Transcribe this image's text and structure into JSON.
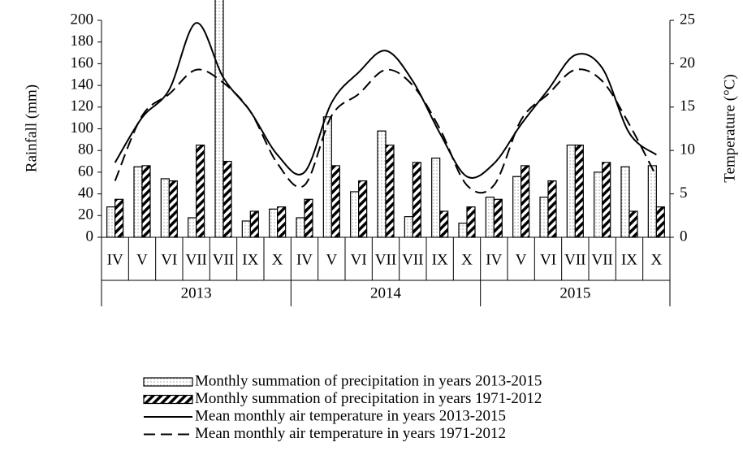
{
  "chart_data": {
    "type": "bar-line",
    "categories": [
      "IV",
      "V",
      "VI",
      "VII",
      "VII",
      "IX",
      "X",
      "IV",
      "V",
      "VI",
      "VII",
      "VII",
      "IX",
      "X",
      "IV",
      "V",
      "VI",
      "VII",
      "VII",
      "IX",
      "X"
    ],
    "x_groups": [
      "2013",
      "2014",
      "2015"
    ],
    "ylabel": "Rainfall (mm)",
    "y2label": "Temperature (°C)",
    "ylim": [
      0,
      200
    ],
    "yticks": [
      0,
      20,
      40,
      60,
      80,
      100,
      120,
      140,
      160,
      180,
      200
    ],
    "y2lim": [
      0,
      25
    ],
    "y2ticks": [
      0,
      5,
      10,
      15,
      20,
      25
    ],
    "series": [
      {
        "name": "Monthly summation of precipitation in years 2013-2015",
        "kind": "bar",
        "color": "#ffffff",
        "pattern": "dotted",
        "values": [
          28,
          65,
          54,
          18,
          220,
          15,
          26,
          18,
          111,
          42,
          98,
          19,
          73,
          13,
          37,
          56,
          37,
          85,
          60,
          65,
          66
        ]
      },
      {
        "name": "Monthly summation of precipitation in years 1971-2012",
        "kind": "bar",
        "color": "#ffffff",
        "pattern": "hatched",
        "values": [
          35,
          66,
          52,
          85,
          70,
          24,
          28,
          35,
          66,
          52,
          85,
          69,
          24,
          28,
          35,
          66,
          52,
          85,
          69,
          24,
          28
        ]
      },
      {
        "name": "Mean monthly air temperature in years 2013-2015",
        "kind": "line",
        "axis": "y2",
        "color": "#000000",
        "dash": false,
        "values": [
          8.6,
          13.8,
          17,
          24.7,
          18.4,
          14.5,
          9.5,
          7.5,
          15.5,
          19,
          21.5,
          18,
          12,
          7,
          8.5,
          13,
          17,
          21,
          19.5,
          12,
          9.5
        ]
      },
      {
        "name": "Mean monthly air temperature in years 1971-2012",
        "kind": "line",
        "axis": "y2",
        "color": "#000000",
        "dash": true,
        "values": [
          6.5,
          14,
          16.5,
          19.3,
          17.8,
          14.5,
          8.5,
          6,
          14,
          16.5,
          19.3,
          17.5,
          12.5,
          6,
          6,
          13.5,
          16.5,
          19.3,
          18,
          13,
          7
        ]
      }
    ]
  }
}
